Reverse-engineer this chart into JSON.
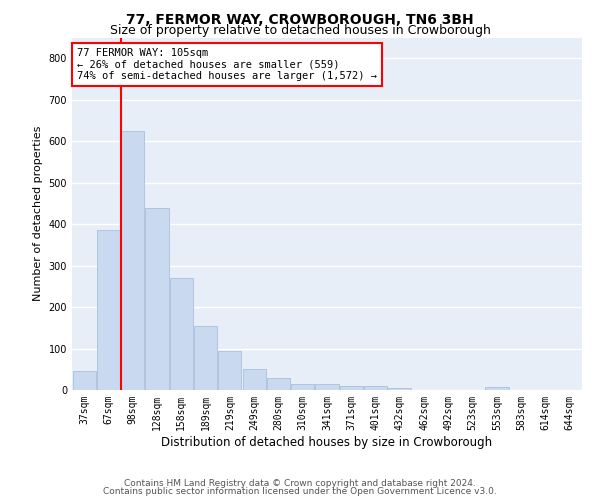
{
  "title1": "77, FERMOR WAY, CROWBOROUGH, TN6 3BH",
  "title2": "Size of property relative to detached houses in Crowborough",
  "xlabel": "Distribution of detached houses by size in Crowborough",
  "ylabel": "Number of detached properties",
  "categories": [
    "37sqm",
    "67sqm",
    "98sqm",
    "128sqm",
    "158sqm",
    "189sqm",
    "219sqm",
    "249sqm",
    "280sqm",
    "310sqm",
    "341sqm",
    "371sqm",
    "401sqm",
    "432sqm",
    "462sqm",
    "492sqm",
    "523sqm",
    "553sqm",
    "583sqm",
    "614sqm",
    "644sqm"
  ],
  "values": [
    45,
    385,
    625,
    440,
    270,
    155,
    95,
    50,
    28,
    15,
    15,
    10,
    10,
    5,
    0,
    0,
    0,
    8,
    0,
    0,
    0
  ],
  "bar_color": "#c9d9ef",
  "bar_edge_color": "#a0b8d8",
  "vline_x_idx": 2,
  "vline_color": "red",
  "annotation_text": "77 FERMOR WAY: 105sqm\n← 26% of detached houses are smaller (559)\n74% of semi-detached houses are larger (1,572) →",
  "annotation_box_color": "white",
  "annotation_box_edge": "red",
  "ylim": [
    0,
    850
  ],
  "yticks": [
    0,
    100,
    200,
    300,
    400,
    500,
    600,
    700,
    800
  ],
  "footer1": "Contains HM Land Registry data © Crown copyright and database right 2024.",
  "footer2": "Contains public sector information licensed under the Open Government Licence v3.0.",
  "background_color": "#e8eef7",
  "grid_color": "white",
  "title1_fontsize": 10,
  "title2_fontsize": 9,
  "xlabel_fontsize": 8.5,
  "ylabel_fontsize": 8,
  "tick_fontsize": 7,
  "annotation_fontsize": 7.5,
  "footer_fontsize": 6.5
}
